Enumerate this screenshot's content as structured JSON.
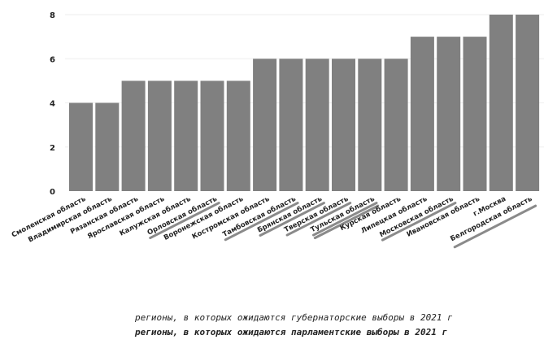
{
  "chart_data": {
    "type": "bar",
    "categories": [
      "Смоленская область",
      "Владимирская область",
      "Рязанская область",
      "Ярославская область",
      "Калужская область",
      "Орловская область",
      "Воронежская область",
      "Костромская область",
      "Тамбовская область",
      "Брянская область",
      "Тверская область",
      "Тульская область",
      "Курская область",
      "Липецкая область",
      "Московская область",
      "Ивановская область",
      "г.Москва",
      "Белгородская область"
    ],
    "values": [
      4,
      4,
      5,
      5,
      5,
      5,
      5,
      6,
      6,
      6,
      6,
      6,
      6,
      7,
      7,
      7,
      8,
      8
    ],
    "gubernatorial_2021": [
      false,
      false,
      false,
      false,
      false,
      true,
      false,
      false,
      true,
      true,
      true,
      true,
      false,
      false,
      true,
      false,
      false,
      false
    ],
    "parliamentary_2021": [
      false,
      false,
      false,
      false,
      false,
      false,
      false,
      false,
      false,
      false,
      false,
      true,
      false,
      false,
      false,
      false,
      false,
      true
    ],
    "ylim": [
      0,
      8
    ],
    "yticks": [
      0,
      2,
      4,
      6,
      8
    ],
    "grid": true,
    "bar_color": "#808080",
    "underline_color": "#8a8a8a",
    "title": "",
    "xlabel": "",
    "ylabel": ""
  },
  "notes": {
    "gubernatorial": "регионы, в которых ожидаются губернаторские выборы в 2021 г",
    "parliamentary": "регионы, в которых ожидаются парламентские выборы в 2021 г"
  }
}
